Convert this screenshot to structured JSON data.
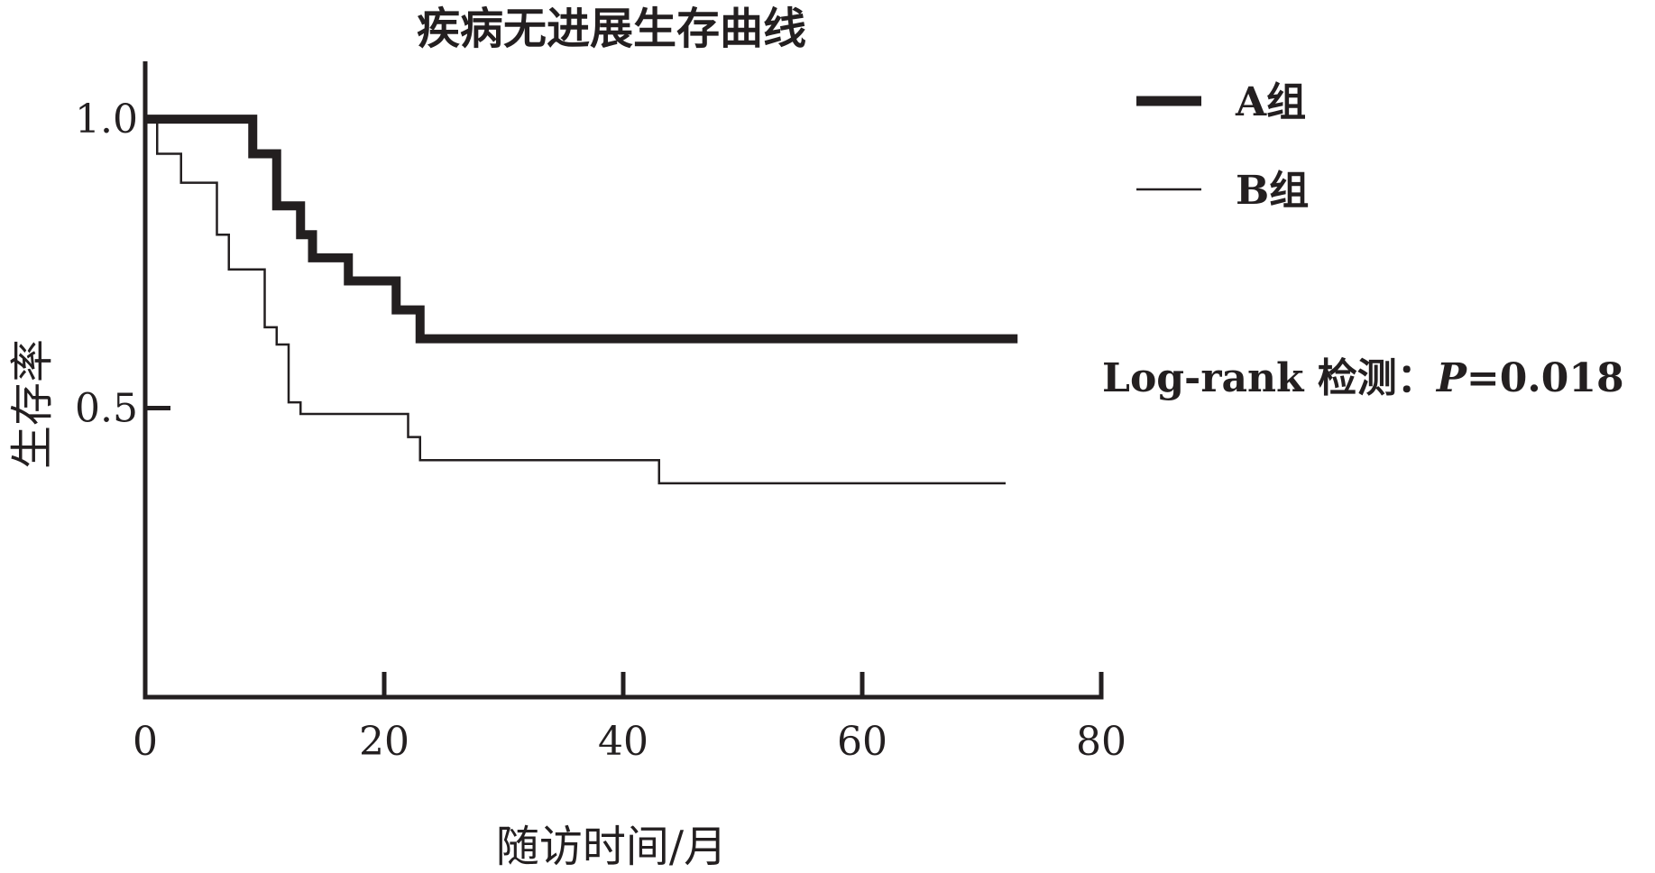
{
  "chart_data": {
    "type": "line",
    "subtype": "kaplan-meier-step",
    "title": "疾病无进展生存曲线",
    "xlabel": "随访时间/月",
    "ylabel": "生存率",
    "xlim": [
      0,
      80
    ],
    "ylim": [
      0,
      1.1
    ],
    "x_ticks": [
      0,
      20,
      40,
      60,
      80
    ],
    "x_tick_labels": [
      "0",
      "20",
      "40",
      "60",
      "80"
    ],
    "y_ticks": [
      0.5,
      1.0
    ],
    "y_tick_labels": [
      "0.5",
      "1.0"
    ],
    "grid": false,
    "legend_position": "top-right",
    "annotation": {
      "prefix": "Log-rank 检测：",
      "p_symbol": "P",
      "p_value": "=0.018"
    },
    "series": [
      {
        "name": "A组",
        "color": "#231f20",
        "weight": "thick",
        "steps": [
          [
            0,
            1.0
          ],
          [
            9,
            0.94
          ],
          [
            11,
            0.85
          ],
          [
            13,
            0.8
          ],
          [
            14,
            0.76
          ],
          [
            17,
            0.72
          ],
          [
            21,
            0.67
          ],
          [
            23,
            0.62
          ],
          [
            73,
            0.62
          ]
        ]
      },
      {
        "name": "B组",
        "color": "#231f20",
        "weight": "thin",
        "steps": [
          [
            0,
            1.0
          ],
          [
            1,
            0.94
          ],
          [
            3,
            0.89
          ],
          [
            6,
            0.8
          ],
          [
            7,
            0.74
          ],
          [
            10,
            0.64
          ],
          [
            11,
            0.61
          ],
          [
            12,
            0.51
          ],
          [
            13,
            0.49
          ],
          [
            22,
            0.45
          ],
          [
            23,
            0.41
          ],
          [
            43,
            0.37
          ],
          [
            72,
            0.37
          ]
        ]
      }
    ]
  }
}
